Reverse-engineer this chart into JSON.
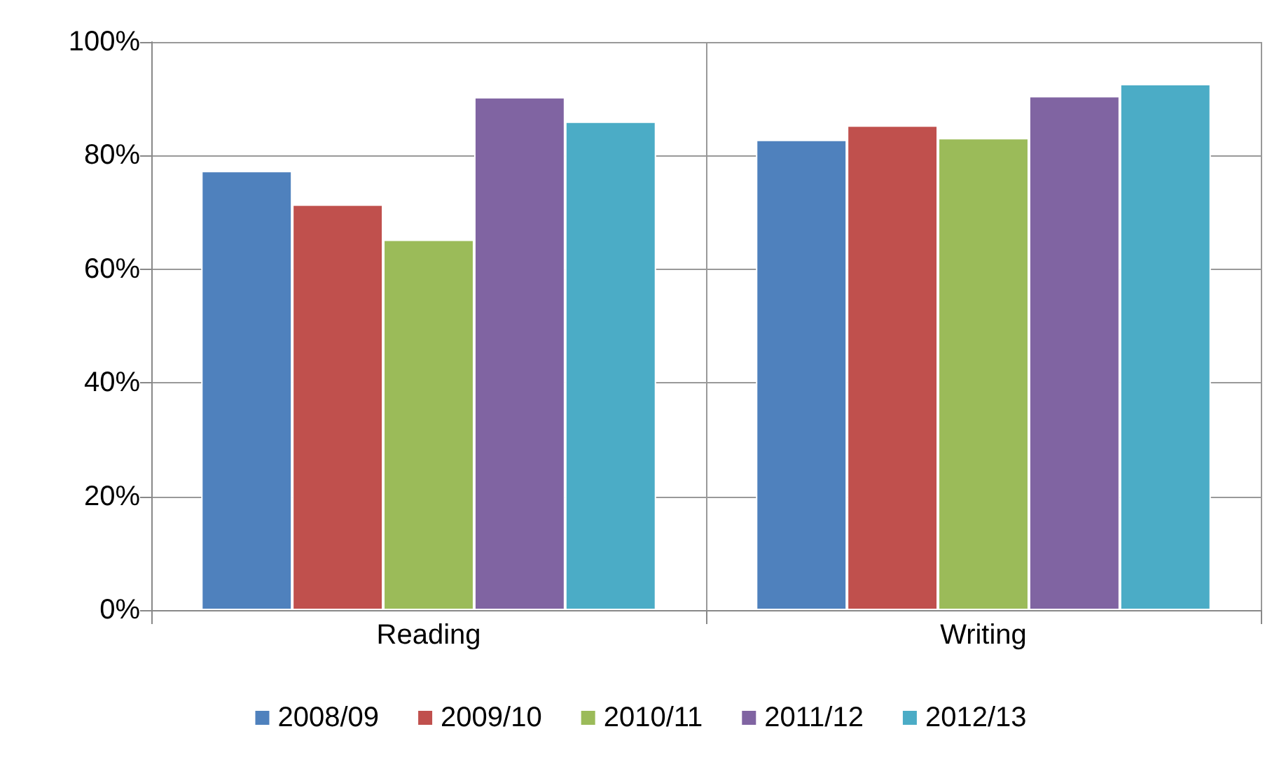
{
  "chart_data": {
    "type": "bar",
    "categories": [
      "Reading",
      "Writing"
    ],
    "series": [
      {
        "name": "2008/09",
        "color": "#4f81bd",
        "values": [
          77.3,
          82.8
        ]
      },
      {
        "name": "2009/10",
        "color": "#c0504d",
        "values": [
          71.4,
          85.3
        ]
      },
      {
        "name": "2010/11",
        "color": "#9bbb59",
        "values": [
          65.2,
          83.1
        ]
      },
      {
        "name": "2011/12",
        "color": "#8064a2",
        "values": [
          90.3,
          90.5
        ]
      },
      {
        "name": "2012/13",
        "color": "#4bacc6",
        "values": [
          86.0,
          92.6
        ]
      }
    ],
    "ylim": [
      0,
      100
    ],
    "yticks": [
      {
        "value": 0,
        "label": "0%"
      },
      {
        "value": 20,
        "label": "20%"
      },
      {
        "value": 40,
        "label": "40%"
      },
      {
        "value": 60,
        "label": "60%"
      },
      {
        "value": 80,
        "label": "80%"
      },
      {
        "value": 100,
        "label": "100%"
      }
    ],
    "grid": true,
    "legend": "bottom"
  }
}
